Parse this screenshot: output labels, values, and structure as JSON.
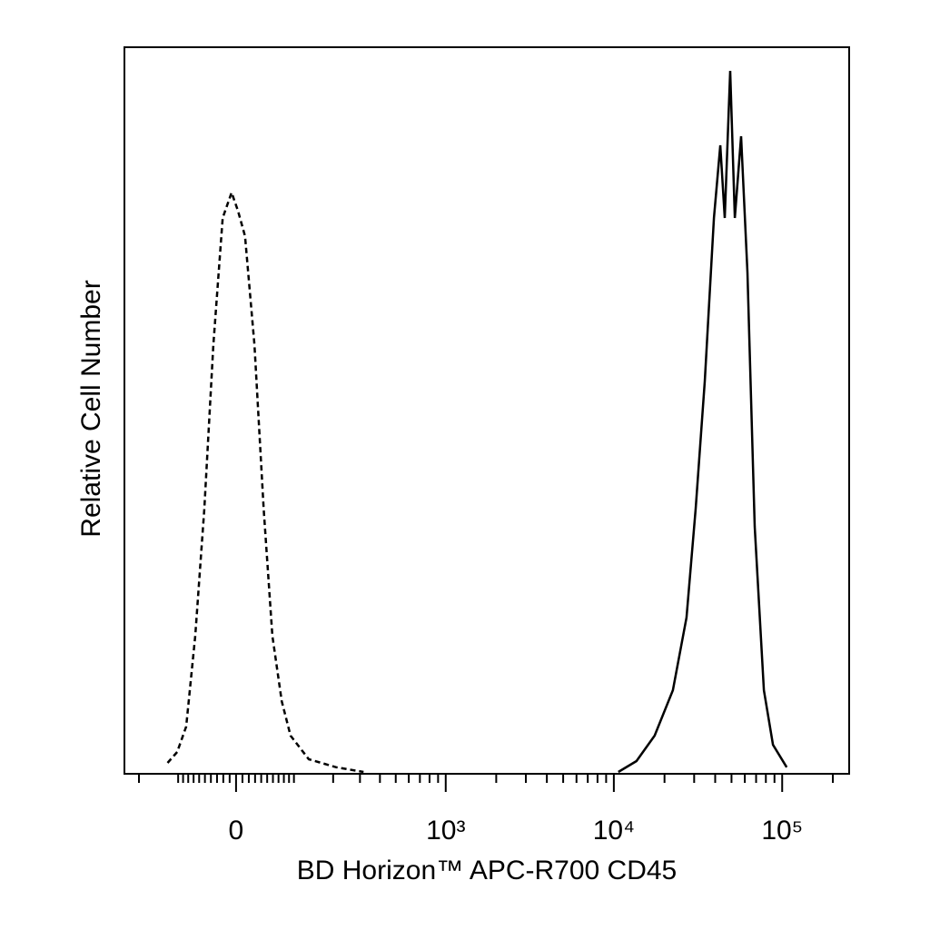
{
  "chart_data": {
    "type": "line",
    "x_label": "BD Horizon™ APC-R700 CD45",
    "y_label": "Relative Cell Number",
    "xscale": "biexponential",
    "xlim": [
      -250,
      250000
    ],
    "ylim": [
      0,
      100
    ],
    "xticks": [
      {
        "value": 0,
        "label": "0"
      },
      {
        "value": 1000,
        "label": "10³"
      },
      {
        "value": 10000,
        "label": "10⁴"
      },
      {
        "value": 100000,
        "label": "10⁵"
      }
    ],
    "xminor_ticks": [
      -200,
      -100,
      -90,
      -80,
      -70,
      -60,
      -50,
      -40,
      -30,
      -20,
      -10,
      10,
      20,
      30,
      40,
      50,
      60,
      70,
      80,
      90,
      100,
      200,
      300,
      400,
      500,
      600,
      700,
      800,
      900,
      2000,
      3000,
      4000,
      5000,
      6000,
      7000,
      8000,
      9000,
      20000,
      30000,
      40000,
      50000,
      60000,
      70000,
      80000,
      90000,
      200000
    ],
    "series": [
      {
        "color": "#000000",
        "line_style": "dashed",
        "x": [
          -123,
          -102,
          -84,
          -67,
          -51,
          -36,
          -21,
          -7,
          3,
          14,
          29,
          44,
          59,
          76,
          93,
          133,
          210,
          316
        ],
        "values": [
          1.5,
          3,
          6.5,
          19,
          36.5,
          59,
          76.5,
          80,
          77.5,
          74,
          59,
          36.5,
          19,
          10,
          5.25,
          2,
          0.9,
          0.25
        ]
      },
      {
        "color": "#000000",
        "line_style": "solid",
        "x": [
          10636,
          13630,
          17480,
          22430,
          27030,
          30650,
          34700,
          39300,
          42900,
          45600,
          49100,
          52300,
          57000,
          62200,
          68700,
          77900,
          88200,
          106400
        ],
        "values": [
          0.25,
          1.75,
          5.25,
          11.5,
          21.5,
          36.5,
          54,
          76.5,
          86.5,
          76.5,
          96.75,
          76.5,
          87.75,
          69,
          34,
          11.5,
          4,
          0.9
        ]
      }
    ]
  }
}
